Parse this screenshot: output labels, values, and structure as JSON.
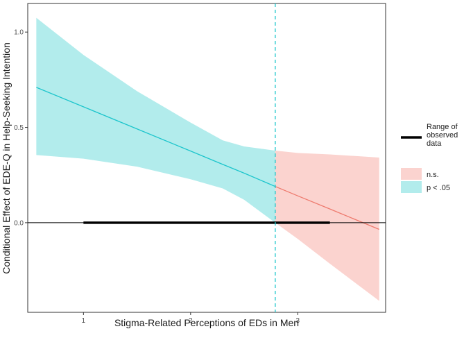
{
  "chart_data": {
    "type": "line",
    "title": "",
    "xlabel": "Stigma-Related Perceptions of EDs in Men",
    "ylabel": "Conditional Effect of EDE-Q in Help-Seeking Intention",
    "xlim": [
      0.48,
      3.82
    ],
    "ylim": [
      -0.47,
      1.15
    ],
    "x_ticks": [
      1,
      2,
      3
    ],
    "x_tick_labels": [
      "1",
      "2",
      "3"
    ],
    "y_ticks": [
      0.0,
      0.5,
      1.0
    ],
    "y_tick_labels": [
      "0.0",
      "0.5",
      "1.0"
    ],
    "grid": false,
    "legend_position": "right",
    "colors": {
      "significant_line": "#1cc5cc",
      "significant_band": "#b2ecec",
      "ns_line": "#ee7a6e",
      "ns_band": "#fbd3cf",
      "reference": "#000000",
      "range_bar": "#000000"
    },
    "johnson_neyman_point": 2.79,
    "reference_y": 0.0,
    "observed_range": [
      1.0,
      3.3
    ],
    "series": [
      {
        "name": "p < .05",
        "x": [
          0.56,
          1.0,
          1.5,
          2.0,
          2.3,
          2.5,
          2.79
        ],
        "y": [
          0.71,
          0.608,
          0.492,
          0.376,
          0.306,
          0.26,
          0.19
        ],
        "lower": [
          0.355,
          0.336,
          0.294,
          0.228,
          0.18,
          0.12,
          0.0
        ],
        "upper": [
          1.075,
          0.88,
          0.69,
          0.525,
          0.432,
          0.4,
          0.378
        ]
      },
      {
        "name": "n.s.",
        "x": [
          2.79,
          3.0,
          3.3,
          3.76
        ],
        "y": [
          0.19,
          0.141,
          0.072,
          -0.035
        ],
        "lower": [
          0.0,
          -0.085,
          -0.215,
          -0.41
        ],
        "upper": [
          0.378,
          0.366,
          0.358,
          0.342
        ]
      }
    ],
    "legend": {
      "range_label": "Range of observed data",
      "items": [
        {
          "label": "n.s.",
          "color": "#fbd3cf"
        },
        {
          "label": "p < .05",
          "color": "#b2ecec"
        }
      ]
    }
  }
}
